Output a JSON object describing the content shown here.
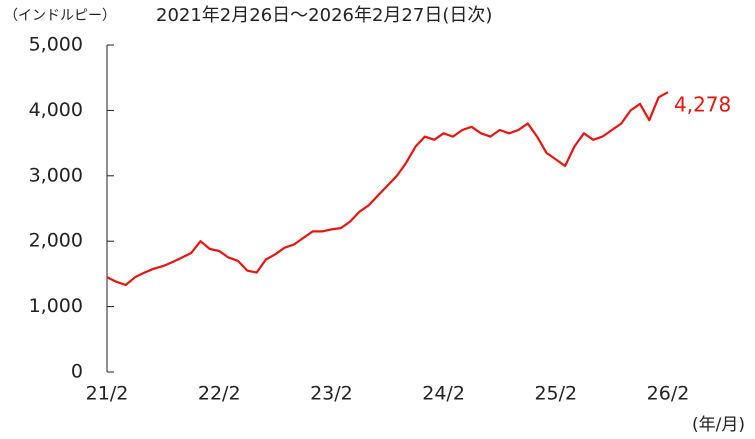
{
  "chart_data": {
    "type": "line",
    "unit_label": "（インドルピー）",
    "title": "2021年2月26日～2026年2月27日(日次)",
    "x_axis_label": "(年/月)",
    "categories": [
      "21/2",
      null,
      null,
      null,
      null,
      null,
      null,
      null,
      null,
      null,
      null,
      null,
      "22/2",
      null,
      null,
      null,
      null,
      null,
      null,
      null,
      null,
      null,
      null,
      null,
      "23/2",
      null,
      null,
      null,
      null,
      null,
      null,
      null,
      null,
      null,
      null,
      null,
      "24/2",
      null,
      null,
      null,
      null,
      null,
      null,
      null,
      null,
      null,
      null,
      null,
      "25/2",
      null,
      null,
      null,
      null,
      null,
      null,
      null,
      null,
      null,
      null,
      null,
      "26/2"
    ],
    "series": [
      {
        "name": null,
        "color": "#e8150f",
        "values": [
          1450,
          1380,
          1330,
          1450,
          1520,
          1580,
          1620,
          1680,
          1750,
          1820,
          2000,
          1880,
          1850,
          1750,
          1700,
          1550,
          1520,
          1720,
          1800,
          1900,
          1950,
          2050,
          2150,
          2150,
          2180,
          2200,
          2300,
          2450,
          2550,
          2700,
          2850,
          3000,
          3200,
          3450,
          3600,
          3550,
          3650,
          3600,
          3700,
          3750,
          3650,
          3600,
          3700,
          3650,
          3700,
          3800,
          3600,
          3350,
          3250,
          3150,
          3450,
          3650,
          3550,
          3600,
          3700,
          3800,
          4000,
          4100,
          3850,
          4200,
          4278
        ],
        "value_labels": {
          "60": "4,278"
        }
      }
    ],
    "ylim": [
      0,
      5000
    ],
    "yticks": [
      0,
      {
        "value": 1000,
        "label": "1,000"
      },
      {
        "value": 2000,
        "label": "2,000"
      },
      {
        "value": 3000,
        "label": "3,000"
      },
      {
        "value": 4000,
        "label": "4,000"
      },
      {
        "value": 5000,
        "label": "5,000"
      }
    ],
    "grid": false
  }
}
